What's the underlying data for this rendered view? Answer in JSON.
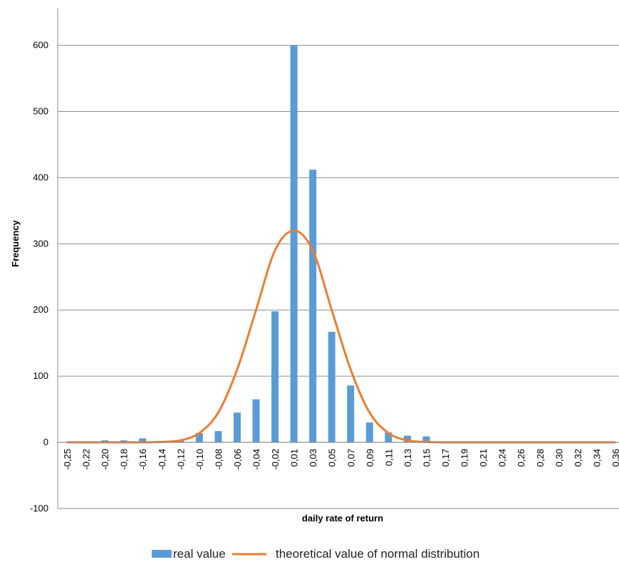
{
  "chart_data": {
    "type": "bar",
    "xlabel": "daily rate of return",
    "ylabel": "Frequency",
    "ylim": [
      -100,
      650
    ],
    "yticks": [
      -100,
      0,
      100,
      200,
      300,
      400,
      500,
      600
    ],
    "grid": true,
    "legend_position": "bottom",
    "categories": [
      "-0,25",
      "-0,22",
      "-0,20",
      "-0,18",
      "-0,16",
      "-0,14",
      "-0,12",
      "-0,10",
      "-0,08",
      "-0,06",
      "-0,04",
      "-0,02",
      "0,01",
      "0,03",
      "0,05",
      "0,07",
      "0,09",
      "0,11",
      "0,13",
      "0,15",
      "0,17",
      "0,19",
      "0,21",
      "0,24",
      "0,26",
      "0,28",
      "0,30",
      "0,32",
      "0,34",
      "0,36"
    ],
    "series": [
      {
        "name": "real value",
        "type": "bar",
        "color": "#5B9BD5",
        "values": [
          0,
          0,
          3,
          3,
          6,
          2,
          3,
          14,
          17,
          45,
          65,
          198,
          600,
          412,
          167,
          86,
          30,
          15,
          10,
          9,
          0,
          0,
          0,
          0,
          0,
          0,
          0,
          0,
          0,
          0
        ]
      },
      {
        "name": "theoretical value of normal distribution",
        "type": "line",
        "color": "#ED7D31",
        "values": [
          0,
          0,
          0,
          0,
          0,
          0.5,
          3,
          14,
          45,
          110,
          200,
          290,
          320,
          290,
          200,
          110,
          45,
          14,
          3,
          0.5,
          0,
          0,
          0,
          0,
          0,
          0,
          0,
          0,
          0,
          0
        ]
      }
    ]
  }
}
